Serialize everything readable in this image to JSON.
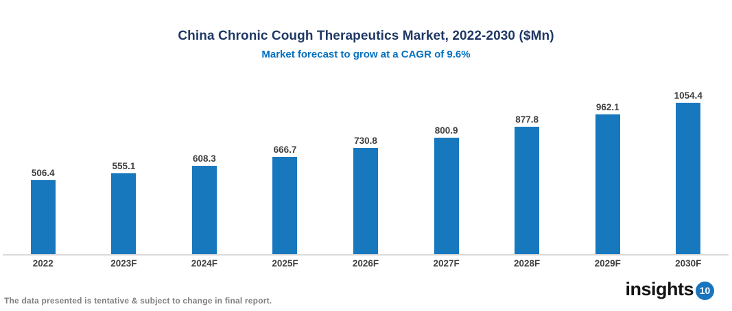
{
  "chart_data": {
    "type": "bar",
    "title": "China Chronic Cough Therapeutics Market, 2022-2030 ($Mn)",
    "subtitle": "Market forecast to grow at a CAGR of 9.6%",
    "categories": [
      "2022",
      "2023F",
      "2024F",
      "2025F",
      "2026F",
      "2027F",
      "2028F",
      "2029F",
      "2030F"
    ],
    "values": [
      506.4,
      555.1,
      608.3,
      666.7,
      730.8,
      800.9,
      877.8,
      962.1,
      1054.4
    ],
    "value_labels": [
      "506.4",
      "555.1",
      "608.3",
      "666.7",
      "730.8",
      "800.9",
      "877.8",
      "962.1",
      "1054.4"
    ],
    "xlabel": "",
    "ylabel": "",
    "ylim": [
      0,
      1120
    ],
    "grid": false,
    "legend_position": "none",
    "bar_color": "#1878BE",
    "axis_line_color": "#D9D9D9",
    "label_color": "#404040",
    "title_color": "#1F3864",
    "subtitle_color": "#0070C0"
  },
  "footer": {
    "disclaimer": "The data presented is tentative & subject to change in final report."
  },
  "logo": {
    "text": "insights",
    "badge": "10",
    "badge_color": "#1B75BC",
    "text_color": "#141414"
  }
}
